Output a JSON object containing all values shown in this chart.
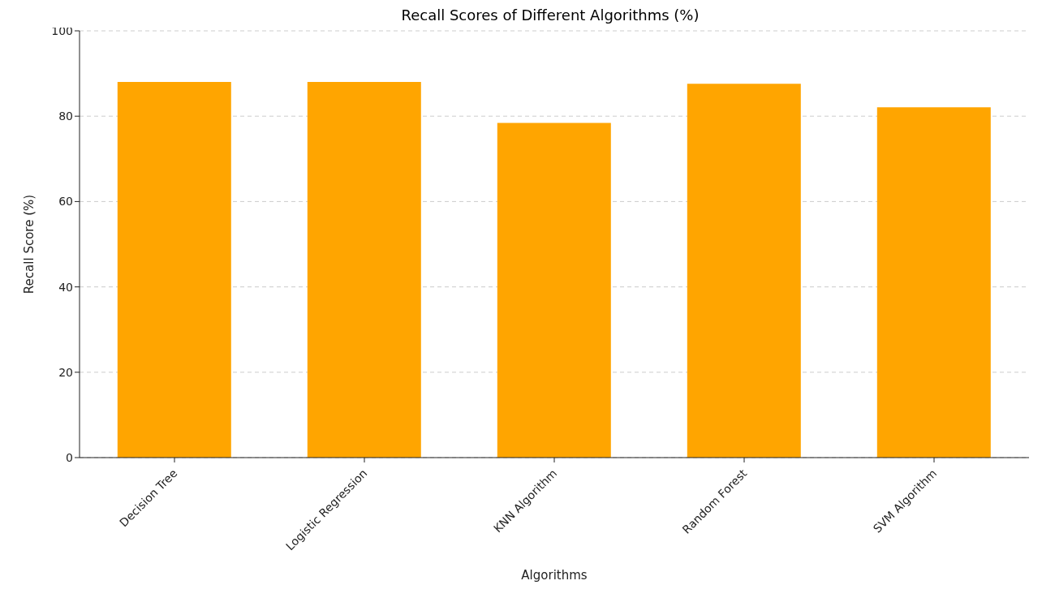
{
  "chart_data": {
    "type": "bar",
    "title": "Recall Scores of Different Algorithms (%)",
    "xlabel": "Algorithms",
    "ylabel": "Recall Score (%)",
    "categories": [
      "Decision Tree",
      "Logistic Regression",
      "KNN Algorithm",
      "Random Forest",
      "SVM Algorithm"
    ],
    "values": [
      88.0,
      88.0,
      78.4,
      87.6,
      82.1
    ],
    "color": "#ffa500",
    "ylim": [
      0,
      100
    ],
    "yticks": [
      0,
      20,
      40,
      60,
      80,
      100
    ],
    "grid": "y"
  }
}
